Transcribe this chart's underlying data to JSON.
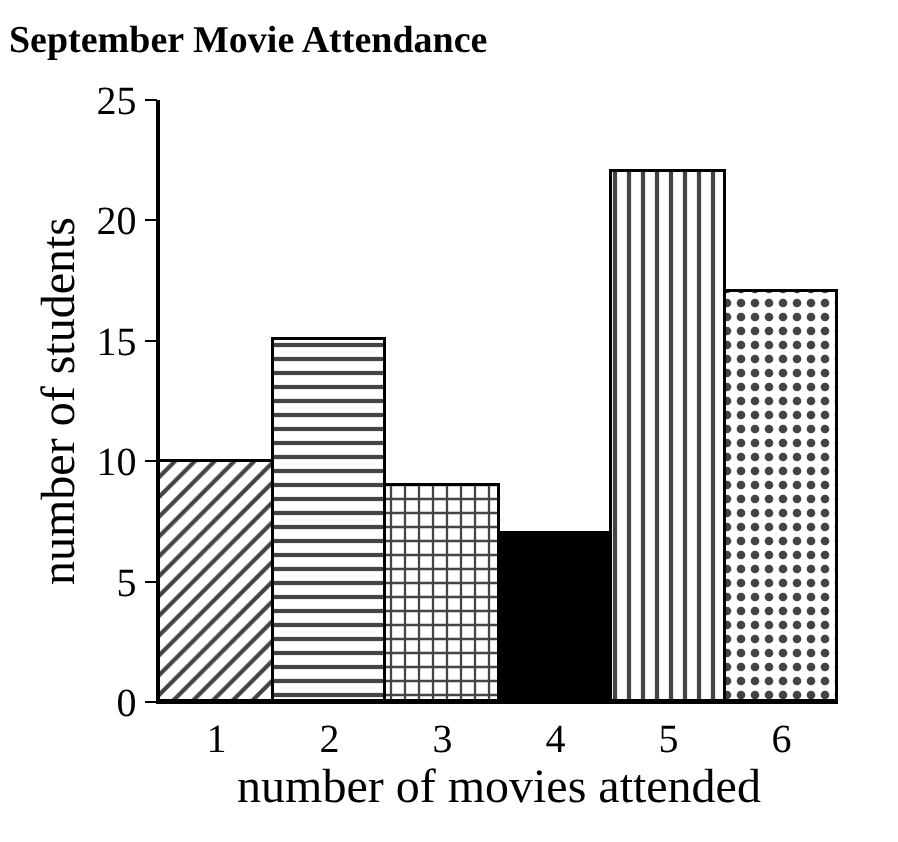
{
  "chart_data": {
    "type": "bar",
    "title": "September Movie Attendance",
    "xlabel": "number of movies attended",
    "ylabel": "number of students",
    "categories": [
      "1",
      "2",
      "3",
      "4",
      "5",
      "6"
    ],
    "values": [
      10,
      15,
      9,
      7,
      22,
      17
    ],
    "colors": [
      "#000000",
      "#000000",
      "#000000",
      "#000000",
      "#000000",
      "#000000"
    ],
    "ylim": [
      0,
      25
    ],
    "yticks": [
      0,
      5,
      10,
      15,
      20,
      25
    ]
  }
}
